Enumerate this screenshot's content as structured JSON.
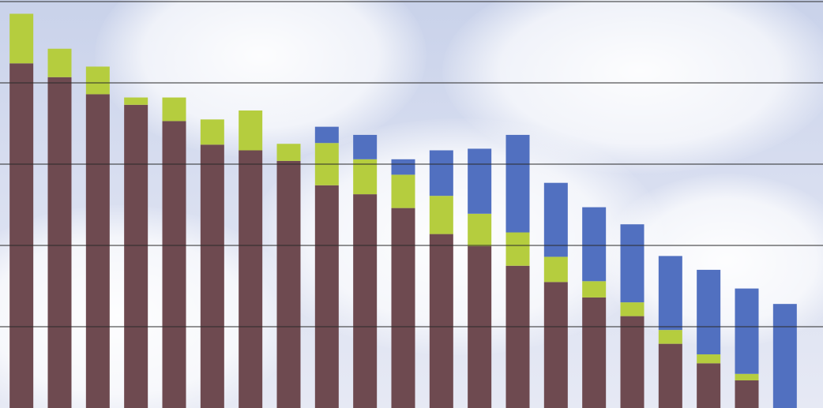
{
  "chart_data": {
    "type": "stacked-bar",
    "categories": [
      null,
      null,
      null,
      null,
      null,
      null,
      null,
      null,
      null,
      null,
      null,
      null,
      null,
      null,
      null,
      null,
      null,
      null,
      null,
      null,
      null
    ],
    "series": [
      {
        "color": "#6e4a50",
        "values": [
          4.24,
          4.07,
          3.86,
          3.73,
          3.53,
          3.24,
          3.17,
          3.04,
          2.74,
          2.63,
          2.46,
          2.14,
          1.99,
          1.75,
          1.55,
          1.36,
          1.13,
          0.79,
          0.55,
          0.34,
          null
        ]
      },
      {
        "color": "#b5cd3e",
        "values": [
          0.61,
          0.35,
          0.34,
          0.09,
          0.29,
          0.31,
          0.49,
          0.21,
          0.52,
          0.43,
          0.41,
          0.47,
          0.4,
          0.41,
          0.31,
          0.2,
          0.17,
          0.17,
          0.11,
          0.08,
          null
        ]
      },
      {
        "color": "#5170c0",
        "values": [
          null,
          null,
          null,
          null,
          null,
          null,
          null,
          null,
          0.2,
          0.3,
          0.19,
          0.56,
          0.8,
          1.2,
          0.91,
          0.91,
          0.96,
          0.91,
          1.04,
          1.05,
          1.28
        ]
      }
    ],
    "ylim": [
      0,
      5
    ],
    "yticks": [
      1,
      2,
      3,
      4,
      5
    ],
    "grid": true
  }
}
